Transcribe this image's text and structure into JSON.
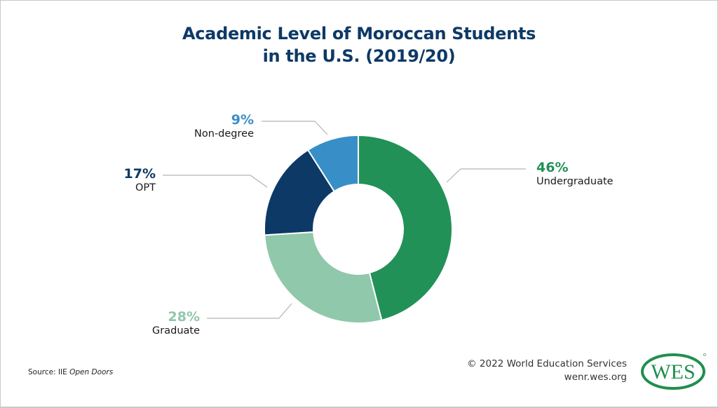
{
  "title": {
    "line1": "Academic Level of Moroccan Students",
    "line2": "in the U.S. (2019/20)"
  },
  "chart_data": {
    "type": "pie",
    "variant": "donut",
    "title": "Academic Level of Moroccan Students in the U.S. (2019/20)",
    "categories": [
      "Undergraduate",
      "Graduate",
      "OPT",
      "Non-degree"
    ],
    "values": [
      46,
      28,
      17,
      9
    ],
    "unit": "%",
    "labels": [
      "46%",
      "28%",
      "17%",
      "9%"
    ],
    "colors": [
      "#229157",
      "#8fc8aa",
      "#0d3966",
      "#388fc8"
    ],
    "start_angle_deg": 0,
    "direction": "clockwise",
    "legend": "none (direct labels with leader lines)"
  },
  "labels": {
    "undergraduate": {
      "pct": "46%",
      "name": "Undergraduate",
      "color": "#229157"
    },
    "graduate": {
      "pct": "28%",
      "name": "Graduate",
      "color": "#8fc8aa"
    },
    "opt": {
      "pct": "17%",
      "name": "OPT",
      "color": "#0d3966"
    },
    "nondegree": {
      "pct": "9%",
      "name": "Non-degree",
      "color": "#388fc8"
    }
  },
  "footer": {
    "source_prefix": "Source: IIE ",
    "source_italic": "Open Doors",
    "copyright": "© 2022 World Education Services",
    "website": "wenr.wes.org",
    "logo_text": "WES",
    "logo_color": "#1f8f4e"
  }
}
